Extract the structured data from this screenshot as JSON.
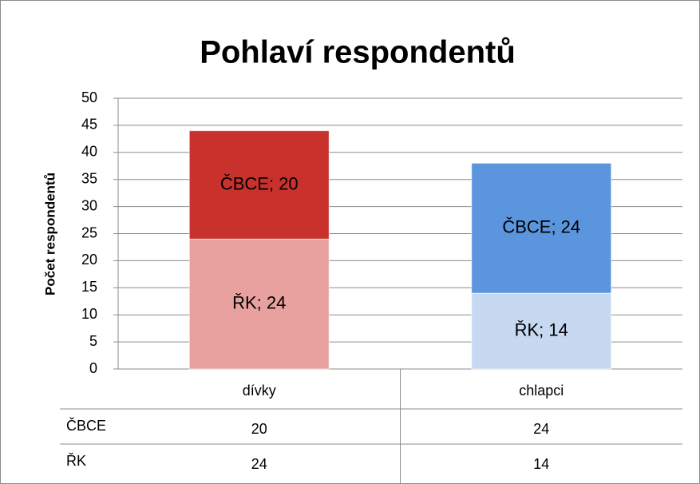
{
  "chart_data": {
    "type": "stacked_bar",
    "title": "Pohlaví respondentů",
    "y_label": "Počet respondentů",
    "categories": [
      "dívky",
      "chlapci"
    ],
    "series": [
      {
        "name": "ŘK",
        "colors": [
          "#e8a19e",
          "#c6d9f1"
        ],
        "values": [
          24,
          14
        ],
        "value_labels": [
          "ŘK; 24",
          "ŘK; 14"
        ]
      },
      {
        "name": "ČBCE",
        "colors": [
          "#c9312d",
          "#5b95dd"
        ],
        "values": [
          20,
          24
        ],
        "value_labels": [
          "ČBCE; 20",
          "ČBCE; 24"
        ]
      }
    ],
    "ylim": [
      0,
      50
    ],
    "yticks": [
      0,
      5,
      10,
      15,
      20,
      25,
      30,
      35,
      40,
      45,
      50
    ],
    "grid": true,
    "data_table": true
  }
}
